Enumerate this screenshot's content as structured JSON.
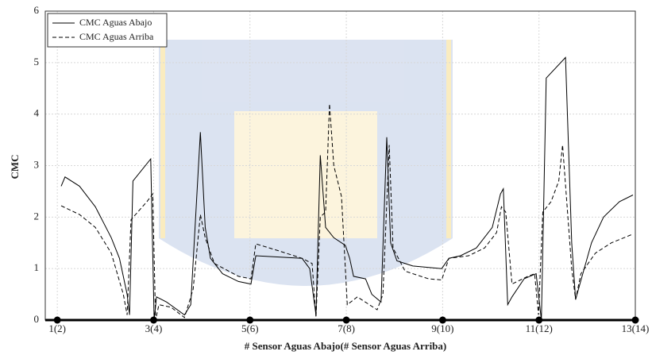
{
  "chart_data": {
    "type": "line",
    "x_label": "# Sensor Aguas Abajo(# Sensor Aguas Arriba)",
    "y_label": "CMC",
    "xlim": [
      0.75,
      13
    ],
    "ylim": [
      0,
      6
    ],
    "xticks": [
      {
        "value": 1,
        "label": "1(2)"
      },
      {
        "value": 3,
        "label": "3(4)"
      },
      {
        "value": 5,
        "label": "5(6)"
      },
      {
        "value": 7,
        "label": "7(8)"
      },
      {
        "value": 9,
        "label": "9(10)"
      },
      {
        "value": 11,
        "label": "11(12)"
      },
      {
        "value": 13,
        "label": "13(14)"
      }
    ],
    "yticks": [
      0,
      1,
      2,
      3,
      4,
      5,
      6
    ],
    "grid": true,
    "legend": "upper left",
    "series": [
      {
        "name": "CMC Aguas Abajo",
        "color": "#000000",
        "dash": "solid",
        "x": [
          1.08,
          1.16,
          1.46,
          1.79,
          2.12,
          2.29,
          2.45,
          2.5,
          2.57,
          2.94,
          3.01,
          3.06,
          3.27,
          3.64,
          3.77,
          3.97,
          4.07,
          4.18,
          4.43,
          4.76,
          5.02,
          5.12,
          6.08,
          6.24,
          6.37,
          6.46,
          6.57,
          6.74,
          6.98,
          7.07,
          7.15,
          7.4,
          7.53,
          7.72,
          7.84,
          7.92,
          8.05,
          8.38,
          8.98,
          9.13,
          9.37,
          9.7,
          10.03,
          10.2,
          10.26,
          10.35,
          10.44,
          10.69,
          10.94,
          11.05,
          11.15,
          11.55,
          11.68,
          11.76,
          11.85,
          12.09,
          12.34,
          12.67,
          12.95
        ],
        "values": [
          2.6,
          2.78,
          2.6,
          2.2,
          1.6,
          1.2,
          0.5,
          0.1,
          2.7,
          3.13,
          0.0,
          0.45,
          0.35,
          0.1,
          0.3,
          3.65,
          1.8,
          1.2,
          0.9,
          0.75,
          0.7,
          1.25,
          1.2,
          1.0,
          0.1,
          3.2,
          1.8,
          1.6,
          1.45,
          1.2,
          0.85,
          0.8,
          0.5,
          0.35,
          3.55,
          1.5,
          1.15,
          1.05,
          1.0,
          1.2,
          1.25,
          1.4,
          1.8,
          2.45,
          2.55,
          0.3,
          0.45,
          0.8,
          0.9,
          0.0,
          4.7,
          5.1,
          1.5,
          0.4,
          0.7,
          1.5,
          2.0,
          2.3,
          2.43
        ]
      },
      {
        "name": "CMC Aguas Arriba",
        "color": "#000000",
        "dash": "dashed",
        "x": [
          1.08,
          1.46,
          1.79,
          2.12,
          2.37,
          2.45,
          2.53,
          2.86,
          2.98,
          3.04,
          3.11,
          3.36,
          3.64,
          3.82,
          3.97,
          4.07,
          4.26,
          4.76,
          5.02,
          5.12,
          5.58,
          6.08,
          6.29,
          6.37,
          6.46,
          6.57,
          6.65,
          6.74,
          6.9,
          7.02,
          7.23,
          7.64,
          7.76,
          7.89,
          7.97,
          8.22,
          8.71,
          8.98,
          9.13,
          9.54,
          9.87,
          10.12,
          10.22,
          10.31,
          10.44,
          10.77,
          10.91,
          10.99,
          11.08,
          11.25,
          11.41,
          11.49,
          11.68,
          11.76,
          11.87,
          12.17,
          12.5,
          12.95
        ],
        "values": [
          2.22,
          2.05,
          1.8,
          1.3,
          0.5,
          0.1,
          1.95,
          2.3,
          2.45,
          0.0,
          0.3,
          0.25,
          0.05,
          0.6,
          2.05,
          1.6,
          1.1,
          0.85,
          0.8,
          1.48,
          1.35,
          1.2,
          1.1,
          0.05,
          2.0,
          2.1,
          4.2,
          3.0,
          2.4,
          0.3,
          0.45,
          0.2,
          0.5,
          3.4,
          1.4,
          0.95,
          0.8,
          0.78,
          1.2,
          1.25,
          1.4,
          1.7,
          2.2,
          2.1,
          0.7,
          0.85,
          0.9,
          0.1,
          2.1,
          2.3,
          2.7,
          3.4,
          1.0,
          0.4,
          0.9,
          1.3,
          1.5,
          1.67
        ]
      }
    ]
  }
}
